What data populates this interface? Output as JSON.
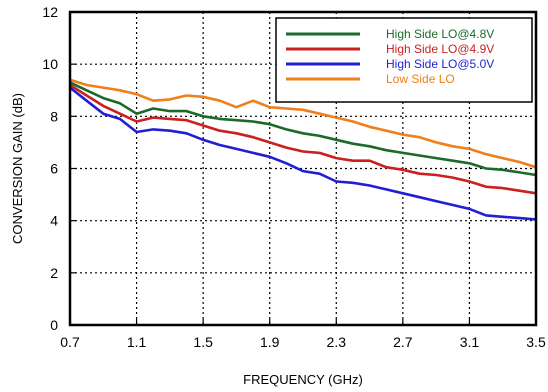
{
  "chart_data": {
    "type": "line",
    "xlabel": "FREQUENCY (GHz)",
    "ylabel": "CONVERSION GAIN (dB)",
    "xlim": [
      0.7,
      3.5
    ],
    "ylim": [
      0,
      12
    ],
    "x_ticks": [
      "0.7",
      "1.1",
      "1.5",
      "1.9",
      "2.3",
      "2.7",
      "3.1",
      "3.5"
    ],
    "y_ticks": [
      "0",
      "2",
      "4",
      "6",
      "8",
      "10",
      "12"
    ],
    "grid": "dotted",
    "legend_position": "top-right",
    "series": [
      {
        "name": "High Side LO@4.8V",
        "color": "#1a6b2a",
        "x": [
          0.7,
          0.8,
          0.9,
          1.0,
          1.1,
          1.2,
          1.3,
          1.4,
          1.5,
          1.6,
          1.7,
          1.8,
          1.9,
          2.0,
          2.1,
          2.2,
          2.3,
          2.4,
          2.5,
          2.6,
          2.7,
          2.8,
          2.9,
          3.0,
          3.1,
          3.2,
          3.3,
          3.4,
          3.5
        ],
        "y": [
          9.3,
          9.0,
          8.7,
          8.5,
          8.1,
          8.3,
          8.2,
          8.2,
          8.0,
          7.9,
          7.85,
          7.8,
          7.7,
          7.5,
          7.35,
          7.25,
          7.1,
          6.95,
          6.85,
          6.7,
          6.6,
          6.5,
          6.4,
          6.3,
          6.2,
          6.0,
          5.95,
          5.85,
          5.75
        ]
      },
      {
        "name": "High Side LO@4.9V",
        "color": "#cc1f1f",
        "x": [
          0.7,
          0.8,
          0.9,
          1.0,
          1.1,
          1.2,
          1.3,
          1.4,
          1.5,
          1.6,
          1.7,
          1.8,
          1.9,
          2.0,
          2.1,
          2.2,
          2.3,
          2.4,
          2.5,
          2.6,
          2.7,
          2.8,
          2.9,
          3.0,
          3.1,
          3.2,
          3.3,
          3.4,
          3.5
        ],
        "y": [
          9.2,
          8.8,
          8.4,
          8.1,
          7.8,
          7.95,
          7.9,
          7.85,
          7.65,
          7.45,
          7.35,
          7.2,
          7.0,
          6.8,
          6.65,
          6.6,
          6.4,
          6.3,
          6.3,
          6.05,
          5.95,
          5.8,
          5.75,
          5.65,
          5.5,
          5.3,
          5.25,
          5.15,
          5.05
        ]
      },
      {
        "name": "High Side LO@5.0V",
        "color": "#1f1fd6",
        "x": [
          0.7,
          0.8,
          0.9,
          1.0,
          1.1,
          1.2,
          1.3,
          1.4,
          1.5,
          1.6,
          1.7,
          1.8,
          1.9,
          2.0,
          2.1,
          2.2,
          2.3,
          2.4,
          2.5,
          2.6,
          2.7,
          2.8,
          2.9,
          3.0,
          3.1,
          3.2,
          3.3,
          3.4,
          3.5
        ],
        "y": [
          9.1,
          8.6,
          8.1,
          7.9,
          7.4,
          7.5,
          7.45,
          7.35,
          7.1,
          6.9,
          6.75,
          6.6,
          6.45,
          6.2,
          5.9,
          5.8,
          5.5,
          5.45,
          5.35,
          5.2,
          5.05,
          4.9,
          4.75,
          4.6,
          4.45,
          4.2,
          4.15,
          4.1,
          4.05
        ]
      },
      {
        "name": "Low Side LO",
        "color": "#f07e1a",
        "x": [
          0.7,
          0.8,
          0.9,
          1.0,
          1.1,
          1.2,
          1.3,
          1.4,
          1.5,
          1.6,
          1.7,
          1.8,
          1.9,
          2.0,
          2.1,
          2.2,
          2.3,
          2.4,
          2.5,
          2.6,
          2.7,
          2.8,
          2.9,
          3.0,
          3.1,
          3.2,
          3.3,
          3.4,
          3.5
        ],
        "y": [
          9.4,
          9.2,
          9.1,
          9.0,
          8.85,
          8.6,
          8.65,
          8.8,
          8.75,
          8.6,
          8.35,
          8.6,
          8.35,
          8.3,
          8.25,
          8.1,
          7.95,
          7.8,
          7.6,
          7.45,
          7.3,
          7.2,
          7.0,
          6.85,
          6.75,
          6.55,
          6.4,
          6.25,
          6.05
        ]
      }
    ]
  }
}
